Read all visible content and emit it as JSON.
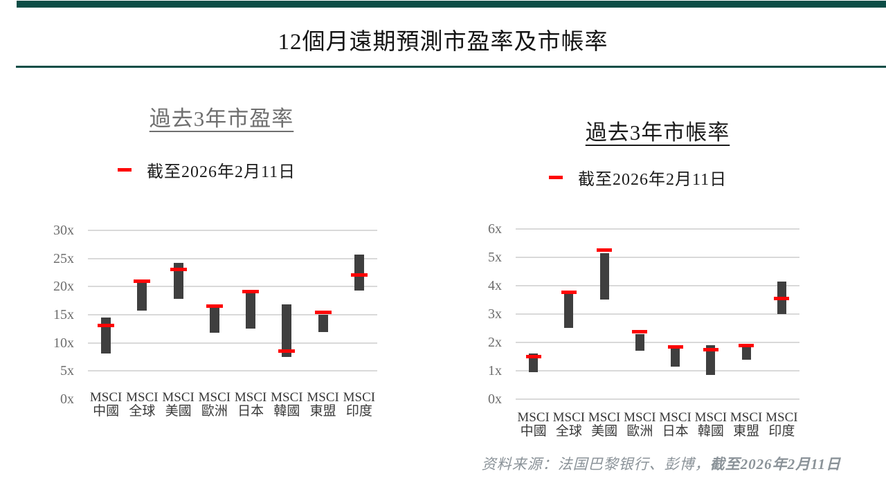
{
  "page": {
    "title": "12個月遠期預測市盈率及市帳率",
    "accent_color": "#0b4d46",
    "source_prefix": "资料来源：法国巴黎银行、彭博，",
    "source_date": "截至2026年2月11日"
  },
  "chart_data": [
    {
      "type": "bar",
      "variant": "floating-range-with-current-marker",
      "title": "過去3年市盈率",
      "categories": [
        [
          "MSCI",
          "中國"
        ],
        [
          "MSCI",
          "全球"
        ],
        [
          "MSCI",
          "美國"
        ],
        [
          "MSCI",
          "歐洲"
        ],
        [
          "MSCI",
          "日本"
        ],
        [
          "MSCI",
          "韓國"
        ],
        [
          "MSCI",
          "東盟"
        ],
        [
          "MSCI",
          "印度"
        ]
      ],
      "ylim": [
        0,
        30
      ],
      "yticks": [
        {
          "label": "30x",
          "value": 30
        },
        {
          "label": "25x",
          "value": 25
        },
        {
          "label": "20x",
          "value": 20
        },
        {
          "label": "15x",
          "value": 15
        },
        {
          "label": "10x",
          "value": 10
        },
        {
          "label": "5x",
          "value": 5
        },
        {
          "label": "0x",
          "value": 0
        }
      ],
      "gridline_at_zero": false,
      "grid": "horizontal",
      "legend_position": "top-left",
      "range_color": "#3f3f3f",
      "marker_color": "#fe0505",
      "gridline_color": "#d9d9d9",
      "series": {
        "range": {
          "low": [
            8.1,
            15.8,
            17.8,
            11.8,
            12.5,
            7.5,
            11.9,
            19.3
          ],
          "high": [
            14.5,
            20.9,
            24.2,
            16.2,
            18.9,
            16.9,
            15.0,
            25.7
          ]
        },
        "current": {
          "label": "截至2026年2月11日",
          "values": [
            13.1,
            21.0,
            23.1,
            16.5,
            19.1,
            8.6,
            15.4,
            22.1
          ]
        }
      }
    },
    {
      "type": "bar",
      "variant": "floating-range-with-current-marker",
      "title": "過去3年市帳率",
      "categories": [
        [
          "MSCI",
          "中國"
        ],
        [
          "MSCI",
          "全球"
        ],
        [
          "MSCI",
          "美國"
        ],
        [
          "MSCI",
          "歐洲"
        ],
        [
          "MSCI",
          "日本"
        ],
        [
          "MSCI",
          "韓國"
        ],
        [
          "MSCI",
          "東盟"
        ],
        [
          "MSCI",
          "印度"
        ]
      ],
      "ylim": [
        0,
        6
      ],
      "yticks": [
        {
          "label": "6x",
          "value": 6
        },
        {
          "label": "5x",
          "value": 5
        },
        {
          "label": "4x",
          "value": 4
        },
        {
          "label": "3x",
          "value": 3
        },
        {
          "label": "2x",
          "value": 2
        },
        {
          "label": "1x",
          "value": 1
        },
        {
          "label": "0x",
          "value": 0
        }
      ],
      "gridline_at_zero": true,
      "grid": "horizontal",
      "legend_position": "top-left",
      "range_color": "#3f3f3f",
      "marker_color": "#fe0505",
      "gridline_color": "#d9d9d9",
      "series": {
        "range": {
          "low": [
            0.95,
            2.5,
            3.5,
            1.7,
            1.15,
            0.85,
            1.4,
            3.0
          ],
          "high": [
            1.6,
            3.75,
            5.15,
            2.3,
            1.78,
            1.9,
            1.85,
            4.15
          ]
        },
        "current": {
          "label": "截至2026年2月11日",
          "values": [
            1.5,
            3.78,
            5.25,
            2.38,
            1.85,
            1.75,
            1.9,
            3.55
          ]
        }
      }
    }
  ]
}
